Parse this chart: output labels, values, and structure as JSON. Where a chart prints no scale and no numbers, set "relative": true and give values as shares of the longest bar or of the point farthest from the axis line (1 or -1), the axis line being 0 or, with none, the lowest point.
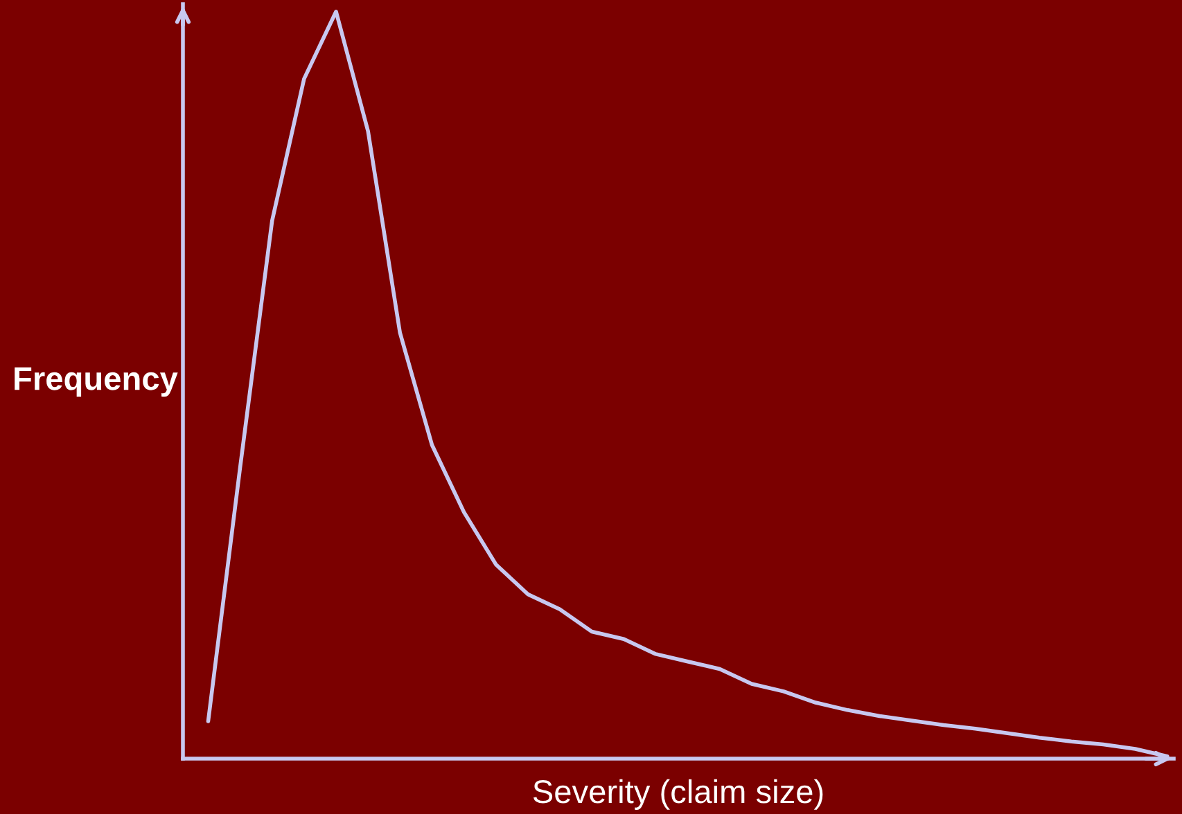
{
  "chart_data": {
    "type": "line",
    "relative": true,
    "xlabel": "Severity (claim size)",
    "ylabel": "Frequency",
    "categories": [
      null,
      null,
      null,
      null,
      null,
      null,
      null,
      null,
      null,
      null,
      null,
      null,
      null,
      null,
      null,
      null,
      null,
      null,
      null,
      null,
      null,
      null,
      null,
      null,
      null,
      null,
      null,
      null,
      null,
      null,
      null
    ],
    "series": [
      {
        "color": "#c8c8f0",
        "values": [
          0.05,
          0.39,
          0.72,
          0.91,
          1.0,
          0.84,
          0.57,
          0.42,
          0.33,
          0.26,
          0.22,
          0.2,
          0.17,
          0.16,
          0.14,
          0.13,
          0.12,
          0.1,
          0.09,
          0.075,
          0.065,
          0.057,
          0.051,
          0.045,
          0.04,
          0.034,
          0.028,
          0.023,
          0.019,
          0.013,
          0.003
        ]
      }
    ],
    "grid": false,
    "legend": false,
    "marker": "none",
    "line_style": "solid"
  }
}
